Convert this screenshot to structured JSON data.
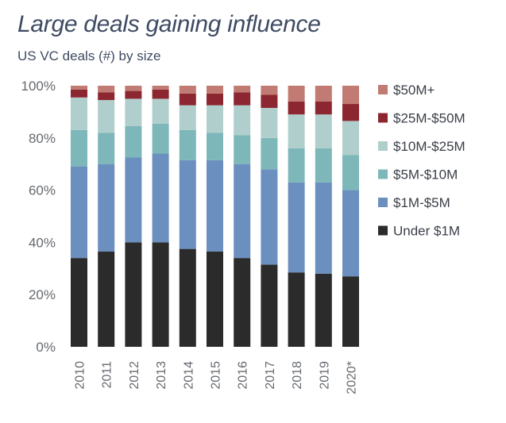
{
  "header": {
    "title": "Large deals gaining influence",
    "subtitle": "US VC deals (#) by size"
  },
  "chart_data": {
    "type": "bar",
    "stacked": true,
    "title": "Large deals gaining influence",
    "subtitle": "US VC deals (#) by size",
    "xlabel": "",
    "ylabel": "",
    "ylim": [
      0,
      100
    ],
    "yticks": [
      "0%",
      "20%",
      "40%",
      "60%",
      "80%",
      "100%"
    ],
    "ytick_values": [
      0,
      20,
      40,
      60,
      80,
      100
    ],
    "legend_position": "right",
    "grid": false,
    "categories": [
      "2010",
      "2011",
      "2012",
      "2013",
      "2014",
      "2015",
      "2016",
      "2017",
      "2018",
      "2019",
      "2020*"
    ],
    "series": [
      {
        "name": "Under $1M",
        "color": "#2b2b2b",
        "values": [
          34,
          36.5,
          40,
          40,
          37.5,
          36.5,
          34,
          31.5,
          28.5,
          28,
          27
        ]
      },
      {
        "name": "$1M-$5M",
        "color": "#6b8fbe",
        "values": [
          35,
          33.5,
          32.5,
          34,
          34,
          35,
          36,
          36.5,
          34.5,
          35,
          33
        ]
      },
      {
        "name": "$5M-$10M",
        "color": "#7db7b9",
        "values": [
          14,
          12,
          12,
          11.5,
          11.5,
          10.5,
          11,
          12,
          13,
          13,
          13.5
        ]
      },
      {
        "name": "$10M-$25M",
        "color": "#b0cfcc",
        "values": [
          12.5,
          12.5,
          10.5,
          9.5,
          9.5,
          10.5,
          11.5,
          11.5,
          13,
          13,
          13
        ]
      },
      {
        "name": "$25M-$50M",
        "color": "#8c2630",
        "values": [
          3,
          3,
          3,
          3.5,
          4.5,
          4.5,
          5,
          5,
          5,
          5,
          6.5
        ]
      },
      {
        "name": "$50M+",
        "color": "#c17b72",
        "values": [
          1.5,
          2.5,
          2,
          1.5,
          3,
          3,
          2.5,
          3.5,
          6,
          6,
          7
        ]
      }
    ]
  }
}
